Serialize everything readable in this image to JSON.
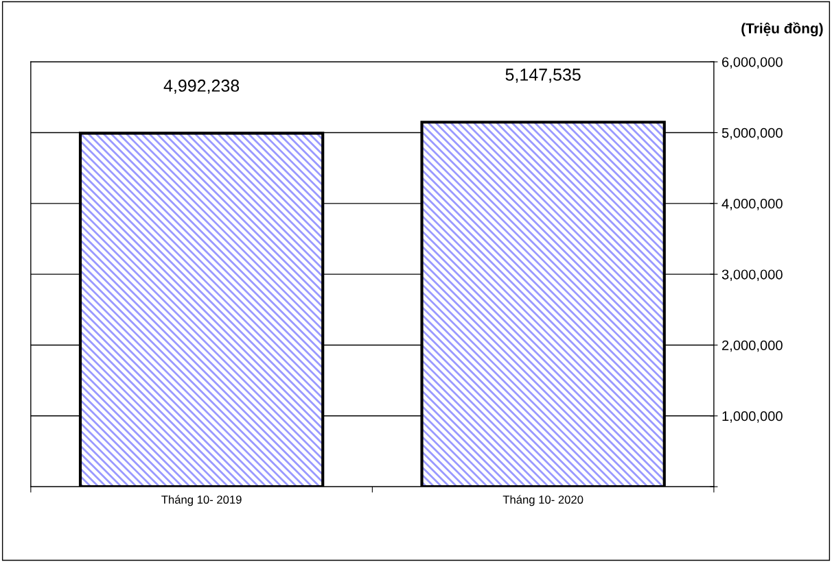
{
  "chart_data": {
    "type": "bar",
    "ylabel": "(Triệu đồng)",
    "categories": [
      "Tháng 10- 2019",
      "Tháng 10- 2020"
    ],
    "values": [
      4992238,
      5147535
    ],
    "value_labels": [
      "4,992,238",
      "5,147,535"
    ],
    "color": "#9999ff",
    "ylim": [
      0,
      6000000
    ],
    "yticks": [
      {
        "value": 0,
        "label": null
      },
      {
        "value": 1000000,
        "label": "1,000,000"
      },
      {
        "value": 2000000,
        "label": "2,000,000"
      },
      {
        "value": 3000000,
        "label": "3,000,000"
      },
      {
        "value": 4000000,
        "label": "4,000,000"
      },
      {
        "value": 5000000,
        "label": "5,000,000"
      },
      {
        "value": 6000000,
        "label": "6,000,000"
      }
    ],
    "grid": "y",
    "legend": false
  }
}
